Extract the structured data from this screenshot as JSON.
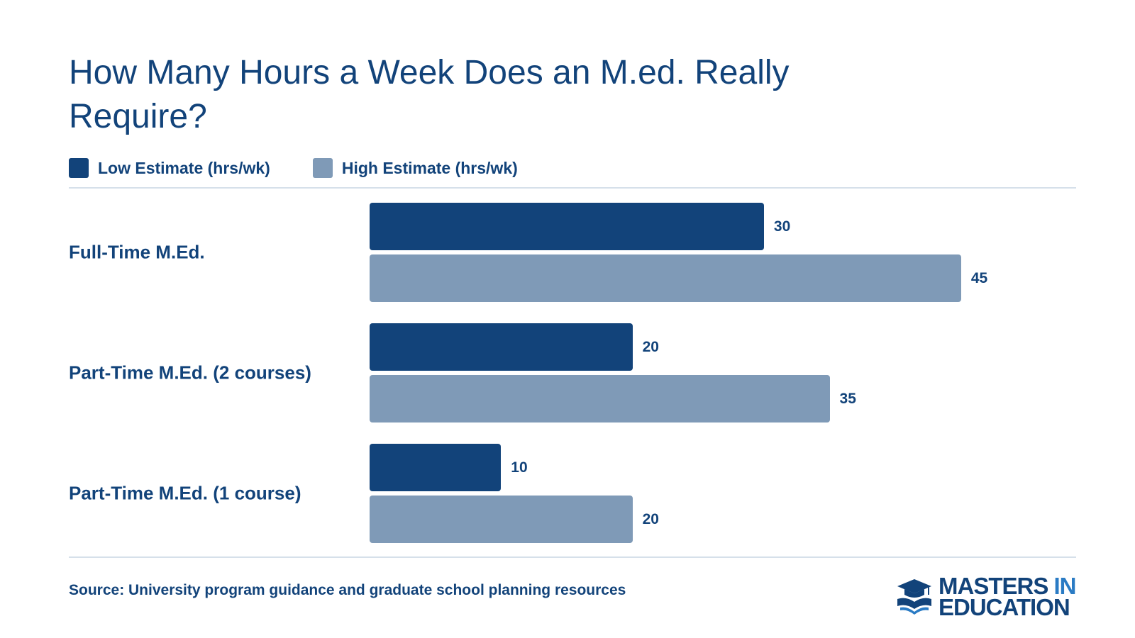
{
  "chart_data": {
    "type": "bar",
    "orientation": "horizontal",
    "title": "How Many Hours a Week Does an M.ed. Really Require?",
    "categories": [
      "Full-Time M.Ed.",
      "Part-Time M.Ed. (2 courses)",
      "Part-Time M.Ed. (1 course)"
    ],
    "series": [
      {
        "name": "Low Estimate (hrs/wk)",
        "values": [
          30,
          20,
          10
        ],
        "color": "#12437a"
      },
      {
        "name": "High Estimate (hrs/wk)",
        "values": [
          45,
          35,
          20
        ],
        "color": "#7f9ab7"
      }
    ],
    "xlim": [
      0,
      50
    ],
    "grid": false,
    "legend": "top-left"
  },
  "source": "Source: University program guidance and graduate school planning resources",
  "logo": {
    "line1_a": "MASTERS ",
    "line1_b": "IN",
    "line2": "EDUCATION",
    "icon": "graduation-cap-book-icon"
  }
}
